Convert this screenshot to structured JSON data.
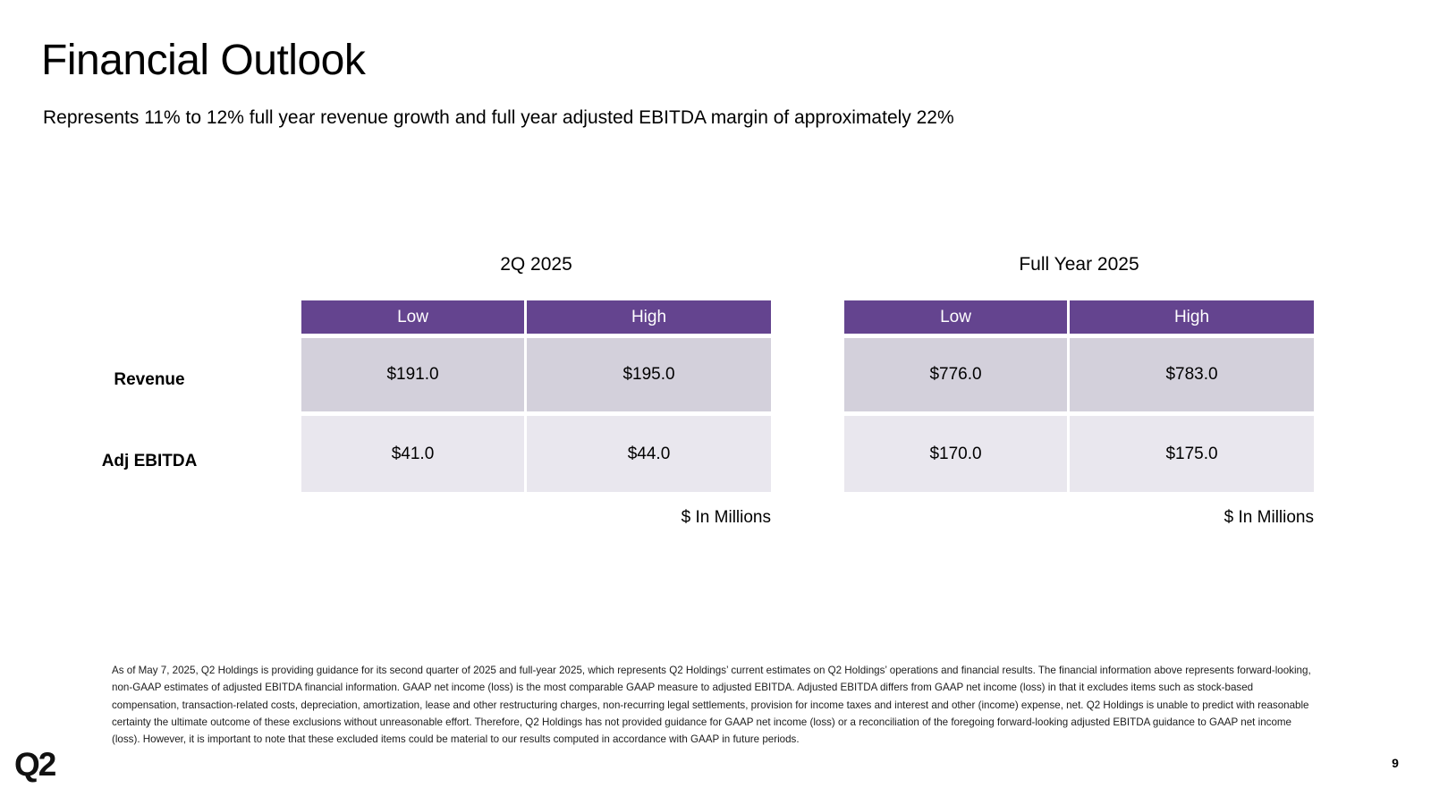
{
  "slide": {
    "title": "Financial Outlook",
    "subtitle": "Represents 11% to 12% full year revenue growth and full year adjusted EBITDA margin of approximately 22%",
    "logo_text": "Q2",
    "page_number": "9"
  },
  "colors": {
    "header_purple": "#64448f",
    "revenue_row_bg": "#d3d0db",
    "ebitda_row_bg": "#e9e7ee"
  },
  "row_labels": [
    "Revenue",
    "Adj EBITDA"
  ],
  "tables": [
    {
      "caption": "2Q 2025",
      "columns": [
        "Low",
        "High"
      ],
      "rows": [
        [
          "$191.0",
          "$195.0"
        ],
        [
          "$41.0",
          "$44.0"
        ]
      ],
      "units_note": "$ In Millions"
    },
    {
      "caption": "Full Year 2025",
      "columns": [
        "Low",
        "High"
      ],
      "rows": [
        [
          "$776.0",
          "$783.0"
        ],
        [
          "$170.0",
          "$175.0"
        ]
      ],
      "units_note": "$ In Millions"
    }
  ],
  "footnote": "As of May 7, 2025, Q2 Holdings is providing guidance for its second quarter of 2025 and full-year 2025, which represents Q2 Holdings’ current estimates on Q2 Holdings’ operations and financial results. The financial information above represents forward-looking, non-GAAP estimates of adjusted EBITDA financial information. GAAP net income (loss) is the most comparable GAAP measure to adjusted EBITDA. Adjusted EBITDA differs from GAAP net income (loss) in that it excludes items such as stock-based compensation, transaction-related costs, depreciation, amortization, lease and other restructuring charges, non-recurring legal settlements, provision for income taxes and interest and other (income) expense, net.  Q2 Holdings is unable to predict with reasonable certainty the ultimate outcome of these exclusions without unreasonable effort. Therefore, Q2 Holdings has not provided guidance for GAAP net income (loss) or a reconciliation of the foregoing forward-looking adjusted EBITDA guidance to GAAP net income (loss). However, it is important to note that these excluded items could be material to our results computed in accordance with GAAP in future periods."
}
